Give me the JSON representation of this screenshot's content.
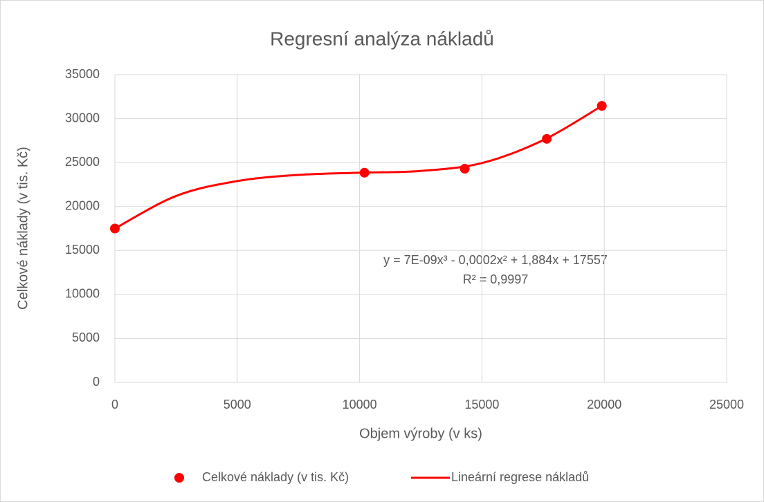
{
  "chart_data": {
    "type": "scatter",
    "title": "Regresní analýza nákladů",
    "xlabel": "Objem výroby (v ks)",
    "ylabel": "Celkové náklady (v tis. Kč)",
    "annotations": [
      "y = 7E-09x³ - 0,0002x² + 1,884x + 17557",
      "R² = 0,9997"
    ],
    "xlim": [
      0,
      25000
    ],
    "xticks": [
      0,
      5000,
      10000,
      15000,
      20000,
      25000
    ],
    "ylim": [
      0,
      35000
    ],
    "yticks": [
      0,
      5000,
      10000,
      15000,
      20000,
      25000,
      30000,
      35000
    ],
    "grid": true,
    "legend": "bottom",
    "series": [
      {
        "name": "Celkové náklady (v tis. Kč)",
        "color": "#ff0000",
        "kind": "points",
        "x": [
          0,
          10200,
          14300,
          17650,
          19900
        ],
        "values": [
          17500,
          23850,
          24300,
          27700,
          31450
        ]
      },
      {
        "name": "Lineární regrese nákladů",
        "color": "#ff0000",
        "kind": "line",
        "x": [
          0,
          2500,
          5000,
          7500,
          10000,
          12500,
          15000,
          17500,
          19900
        ],
        "values": [
          17500,
          21200,
          22900,
          23600,
          23850,
          24050,
          24950,
          27550,
          31450
        ]
      }
    ]
  }
}
